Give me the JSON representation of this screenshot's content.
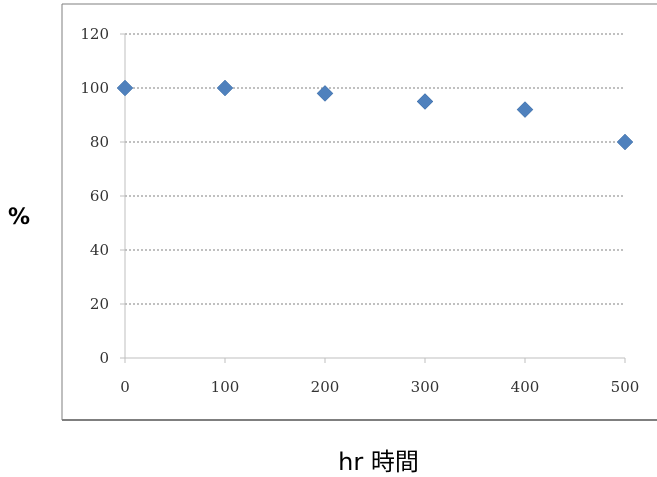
{
  "chart_data": {
    "type": "scatter",
    "title": "",
    "xlabel": "hr 時間",
    "ylabel": "%",
    "x": [
      0,
      100,
      200,
      300,
      400,
      500
    ],
    "y": [
      100,
      100,
      98,
      95,
      92,
      80
    ],
    "xlim": [
      0,
      500
    ],
    "ylim": [
      0,
      120
    ],
    "xticks": [
      "0",
      "100",
      "200",
      "300",
      "400",
      "500"
    ],
    "yticks": [
      "0",
      "20",
      "40",
      "60",
      "80",
      "100",
      "120"
    ],
    "grid": "horizontal-dashed",
    "legend": "none",
    "marker": "diamond",
    "colors": {
      "marker": "#4f81bd",
      "grid": "#808080",
      "frame": "#7f7f7f"
    }
  }
}
